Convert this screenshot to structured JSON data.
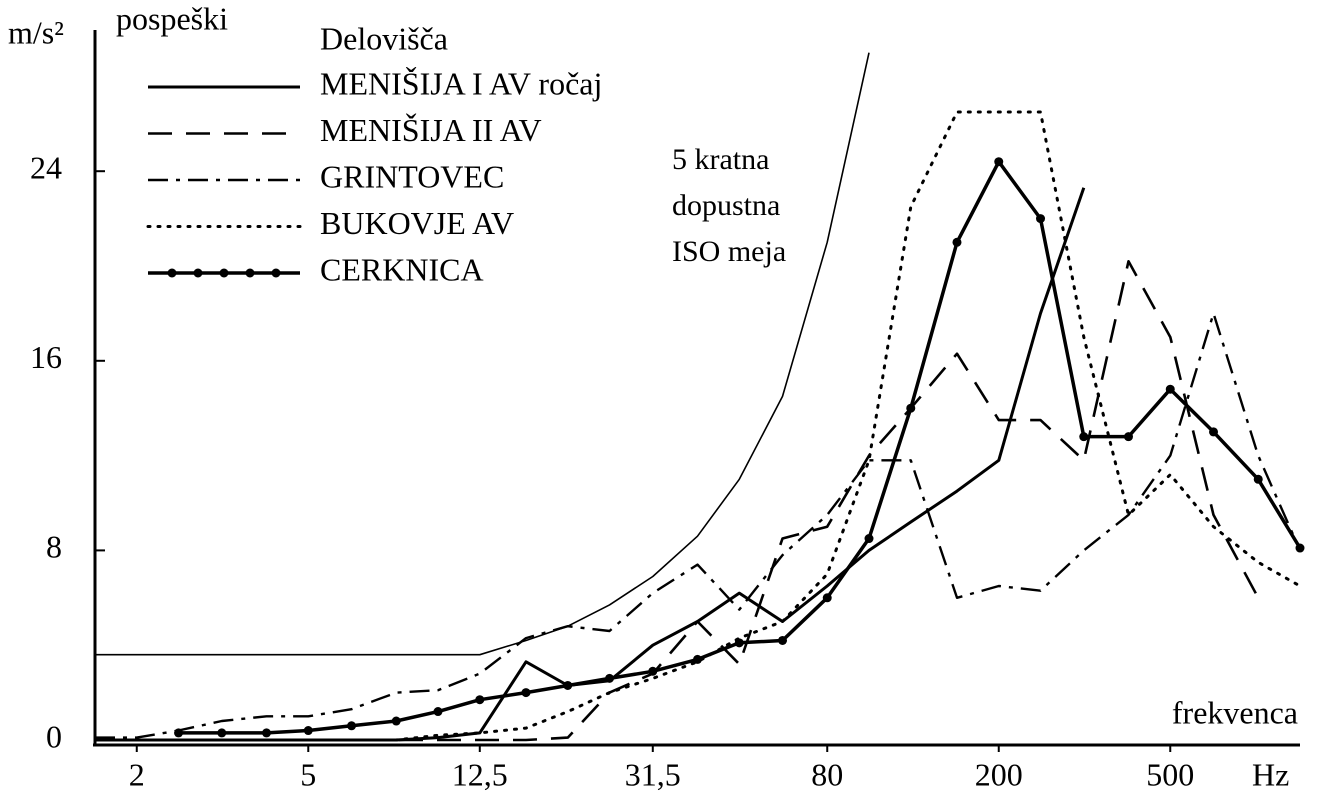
{
  "chart_data": {
    "type": "line",
    "y_label": "m/s²",
    "y_title": "pospeški",
    "x_title": "frekvenca",
    "x_unit": "Hz",
    "legend_title": "Delovišča",
    "legend": "upper left",
    "log_x": true,
    "x": [
      1.6,
      2,
      2.5,
      3.15,
      4,
      5,
      6.3,
      8,
      10,
      12.5,
      16,
      20,
      25,
      31.5,
      40,
      50,
      63,
      80,
      100,
      125,
      160,
      200,
      250,
      315,
      400,
      500,
      630,
      800,
      1000
    ],
    "xlim": [
      1.6,
      1000
    ],
    "xticks": [
      2,
      5,
      {
        "value": 12.5,
        "label": "12,5"
      },
      {
        "value": 31.5,
        "label": "31,5"
      },
      80,
      200,
      500
    ],
    "ylim": [
      0,
      30
    ],
    "yticks": [
      0,
      8,
      16,
      24
    ],
    "series": [
      {
        "name": "MENIŠIJA I AV ročaj",
        "color": "#000000",
        "style": "solid",
        "values": [
          0,
          0,
          0,
          0,
          0,
          0,
          0,
          0,
          0.1,
          0.3,
          3.3,
          2.3,
          2.5,
          4.0,
          5.0,
          6.2,
          5.0,
          6.5,
          8.0,
          9.2,
          10.5,
          11.8,
          18.0,
          23.3,
          null,
          null,
          null,
          null,
          null
        ]
      },
      {
        "name": "MENIŠIJA II AV",
        "color": "#000000",
        "style": "dashed",
        "values": [
          0,
          0,
          0,
          0,
          0,
          0,
          0,
          0,
          0,
          0,
          0,
          0.1,
          2.0,
          2.8,
          5.0,
          3.2,
          8.5,
          9.0,
          12.0,
          14.0,
          16.3,
          13.5,
          13.5,
          11.8,
          20.2,
          17.0,
          9.5,
          6.0,
          null
        ]
      },
      {
        "name": "GRINTOVEC",
        "color": "#000000",
        "style": "dashdot",
        "values": [
          0.1,
          0.1,
          0.4,
          0.8,
          1.0,
          1.0,
          1.3,
          2.0,
          2.1,
          2.8,
          4.3,
          4.8,
          4.6,
          6.2,
          7.4,
          5.5,
          7.8,
          9.5,
          11.8,
          11.8,
          6.0,
          6.5,
          6.3,
          8.0,
          9.5,
          12.0,
          18.0,
          12.0,
          8.0
        ]
      },
      {
        "name": "BUKOVJE AV",
        "color": "#000000",
        "style": "dotted",
        "values": [
          0,
          0,
          0,
          0,
          0,
          0,
          0,
          0,
          0.2,
          0.3,
          0.5,
          1.2,
          2.0,
          2.6,
          3.3,
          4.3,
          5.0,
          7.0,
          11.8,
          22.5,
          26.5,
          26.5,
          26.5,
          17.0,
          9.5,
          11.2,
          9.0,
          7.5,
          6.5
        ]
      },
      {
        "name": "CERKNICA",
        "color": "#000000",
        "style": "solid-dots",
        "values": [
          null,
          null,
          0.3,
          0.3,
          0.3,
          0.4,
          0.6,
          0.8,
          1.2,
          1.7,
          2.0,
          2.3,
          2.6,
          2.9,
          3.4,
          4.1,
          4.2,
          6.0,
          8.5,
          14.0,
          21.0,
          24.4,
          22.0,
          12.8,
          12.8,
          14.8,
          13.0,
          11.0,
          8.1
        ]
      }
    ],
    "limit_curve": {
      "label": [
        "5 kratna",
        "dopustna",
        "ISO meja"
      ],
      "color": "#000000",
      "values": [
        3.6,
        3.6,
        3.6,
        3.6,
        3.6,
        3.6,
        3.6,
        3.6,
        3.6,
        3.6,
        4.2,
        4.8,
        5.7,
        6.9,
        8.6,
        11.0,
        14.5,
        21.0,
        29.0,
        null,
        null,
        null,
        null,
        null,
        null,
        null,
        null,
        null,
        null
      ]
    }
  }
}
